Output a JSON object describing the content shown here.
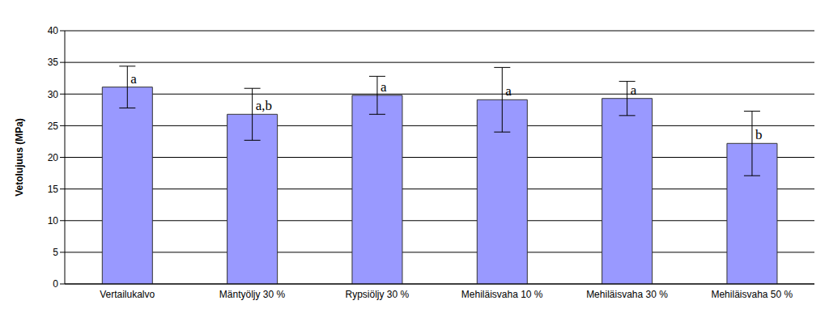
{
  "chart_data": {
    "type": "bar",
    "y_label": "Vetolujuus (MPa)",
    "categories": [
      "Vertailukalvo",
      "Mäntyöljy 30 %",
      "Rypsiöljy 30 %",
      "Mehiläisvaha 10 %",
      "Mehiläisvaha 30 %",
      "Mehiläisvaha 50 %"
    ],
    "values": [
      31.1,
      26.8,
      29.8,
      29.1,
      29.3,
      22.2
    ],
    "error": [
      3.3,
      4.1,
      3.0,
      5.1,
      2.7,
      5.1
    ],
    "annotations": [
      "a",
      "a,b",
      "a",
      "a",
      "a",
      "b"
    ],
    "color": "#9999ff",
    "ylim": [
      0,
      40
    ],
    "yticks": [
      0,
      5,
      10,
      15,
      20,
      25,
      30,
      35,
      40
    ],
    "grid": true
  }
}
